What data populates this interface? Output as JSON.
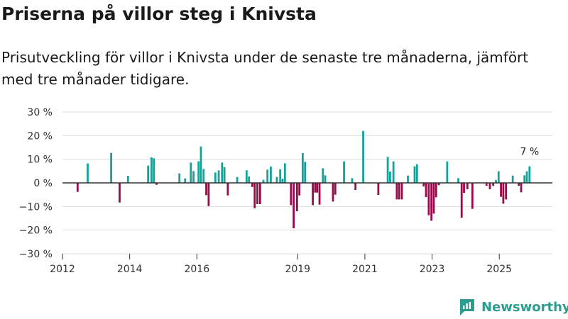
{
  "title": "Priserna på villor steg i Knivsta",
  "subtitle": "Prisutveckling för villor i Knivsta under de senaste tre månaderna, jämfört med tre månader tidigare.",
  "colors": {
    "positive": "#12a39a",
    "negative": "#9b0a4b",
    "zero_line": "#333333",
    "grid": "#dddddd",
    "brand": "#2a9d8f"
  },
  "brand": {
    "name": "Newsworthy"
  },
  "chart_data": {
    "type": "bar",
    "title": "Priserna på villor steg i Knivsta",
    "xlabel": "",
    "ylabel": "",
    "ylim": [
      -30,
      30
    ],
    "yticks": [
      {
        "value": 30,
        "label": "30 %"
      },
      {
        "value": 20,
        "label": "20 %"
      },
      {
        "value": 10,
        "label": "10 %"
      },
      {
        "value": 0,
        "label": "0 %"
      },
      {
        "value": -10,
        "label": "−10 %"
      },
      {
        "value": -20,
        "label": "−20 %"
      },
      {
        "value": -30,
        "label": "−30 %"
      }
    ],
    "xlim": [
      2012.0,
      2026.58
    ],
    "xticks": [
      {
        "value": 2012.0,
        "label": "2012"
      },
      {
        "value": 2014.0,
        "label": "2014"
      },
      {
        "value": 2016.0,
        "label": "2016"
      },
      {
        "value": 2019.0,
        "label": "2019"
      },
      {
        "value": 2021.0,
        "label": "2021"
      },
      {
        "value": 2023.0,
        "label": "2023"
      },
      {
        "value": 2025.0,
        "label": "2025"
      }
    ],
    "grid": true,
    "series": [
      {
        "name": "Prisutveckling",
        "points": [
          {
            "x": 2012.45,
            "y": -3.8
          },
          {
            "x": 2012.75,
            "y": 8.2
          },
          {
            "x": 2013.45,
            "y": 12.7
          },
          {
            "x": 2013.7,
            "y": -8.3
          },
          {
            "x": 2013.95,
            "y": 3.0
          },
          {
            "x": 2014.55,
            "y": 7.3
          },
          {
            "x": 2014.65,
            "y": 10.8
          },
          {
            "x": 2014.72,
            "y": 10.4
          },
          {
            "x": 2014.8,
            "y": -0.8
          },
          {
            "x": 2015.48,
            "y": 4.0
          },
          {
            "x": 2015.65,
            "y": 1.9
          },
          {
            "x": 2015.82,
            "y": 8.6
          },
          {
            "x": 2015.9,
            "y": 5.0
          },
          {
            "x": 2016.05,
            "y": 9.1
          },
          {
            "x": 2016.12,
            "y": 15.4
          },
          {
            "x": 2016.2,
            "y": 5.9
          },
          {
            "x": 2016.28,
            "y": -5.2
          },
          {
            "x": 2016.35,
            "y": -9.8
          },
          {
            "x": 2016.55,
            "y": 4.4
          },
          {
            "x": 2016.65,
            "y": 5.3
          },
          {
            "x": 2016.75,
            "y": 8.6
          },
          {
            "x": 2016.82,
            "y": 6.6
          },
          {
            "x": 2016.92,
            "y": -5.3
          },
          {
            "x": 2017.2,
            "y": 2.5
          },
          {
            "x": 2017.48,
            "y": 5.3
          },
          {
            "x": 2017.55,
            "y": 2.7
          },
          {
            "x": 2017.65,
            "y": -1.7
          },
          {
            "x": 2017.72,
            "y": -10.7
          },
          {
            "x": 2017.8,
            "y": -9.0
          },
          {
            "x": 2017.88,
            "y": -9.0
          },
          {
            "x": 2017.98,
            "y": 1.3
          },
          {
            "x": 2018.1,
            "y": 5.6
          },
          {
            "x": 2018.2,
            "y": 6.9
          },
          {
            "x": 2018.38,
            "y": 2.5
          },
          {
            "x": 2018.48,
            "y": 5.8
          },
          {
            "x": 2018.55,
            "y": 1.8
          },
          {
            "x": 2018.62,
            "y": 8.3
          },
          {
            "x": 2018.8,
            "y": -9.4
          },
          {
            "x": 2018.88,
            "y": -19.2
          },
          {
            "x": 2018.98,
            "y": -12.0
          },
          {
            "x": 2019.05,
            "y": -5.3
          },
          {
            "x": 2019.15,
            "y": 12.6
          },
          {
            "x": 2019.22,
            "y": 8.9
          },
          {
            "x": 2019.45,
            "y": -9.4
          },
          {
            "x": 2019.52,
            "y": -4.1
          },
          {
            "x": 2019.58,
            "y": -4.1
          },
          {
            "x": 2019.65,
            "y": -9.2
          },
          {
            "x": 2019.75,
            "y": 6.2
          },
          {
            "x": 2019.82,
            "y": 3.2
          },
          {
            "x": 2020.05,
            "y": -7.9
          },
          {
            "x": 2020.12,
            "y": -5.0
          },
          {
            "x": 2020.38,
            "y": 9.1
          },
          {
            "x": 2020.62,
            "y": 2.0
          },
          {
            "x": 2020.72,
            "y": -3.0
          },
          {
            "x": 2020.95,
            "y": 22.0
          },
          {
            "x": 2021.4,
            "y": -5.1
          },
          {
            "x": 2021.68,
            "y": 11.0
          },
          {
            "x": 2021.75,
            "y": 4.8
          },
          {
            "x": 2021.85,
            "y": 9.1
          },
          {
            "x": 2021.95,
            "y": -7.0
          },
          {
            "x": 2022.02,
            "y": -7.0
          },
          {
            "x": 2022.1,
            "y": -7.0
          },
          {
            "x": 2022.28,
            "y": 3.1
          },
          {
            "x": 2022.48,
            "y": 7.0
          },
          {
            "x": 2022.55,
            "y": 7.9
          },
          {
            "x": 2022.75,
            "y": -1.5
          },
          {
            "x": 2022.82,
            "y": -6.0
          },
          {
            "x": 2022.9,
            "y": -13.7
          },
          {
            "x": 2022.98,
            "y": -16.0
          },
          {
            "x": 2023.05,
            "y": -13.0
          },
          {
            "x": 2023.12,
            "y": -6.1
          },
          {
            "x": 2023.2,
            "y": -1.0
          },
          {
            "x": 2023.45,
            "y": 9.1
          },
          {
            "x": 2023.78,
            "y": 2.0
          },
          {
            "x": 2023.88,
            "y": -14.7
          },
          {
            "x": 2023.95,
            "y": -4.2
          },
          {
            "x": 2024.05,
            "y": -2.7
          },
          {
            "x": 2024.2,
            "y": -11.0
          },
          {
            "x": 2024.62,
            "y": -1.2
          },
          {
            "x": 2024.72,
            "y": -2.7
          },
          {
            "x": 2024.82,
            "y": -1.3
          },
          {
            "x": 2024.9,
            "y": 1.2
          },
          {
            "x": 2024.98,
            "y": 4.9
          },
          {
            "x": 2025.05,
            "y": -5.9
          },
          {
            "x": 2025.12,
            "y": -8.8
          },
          {
            "x": 2025.2,
            "y": -7.0
          },
          {
            "x": 2025.4,
            "y": 3.1
          },
          {
            "x": 2025.58,
            "y": -1.2
          },
          {
            "x": 2025.65,
            "y": -4.0
          },
          {
            "x": 2025.75,
            "y": 3.2
          },
          {
            "x": 2025.82,
            "y": 4.9
          },
          {
            "x": 2025.9,
            "y": 7.0
          }
        ]
      }
    ],
    "annotations": [
      {
        "x": 2025.9,
        "y": 7.0,
        "text": "7 %"
      }
    ]
  }
}
